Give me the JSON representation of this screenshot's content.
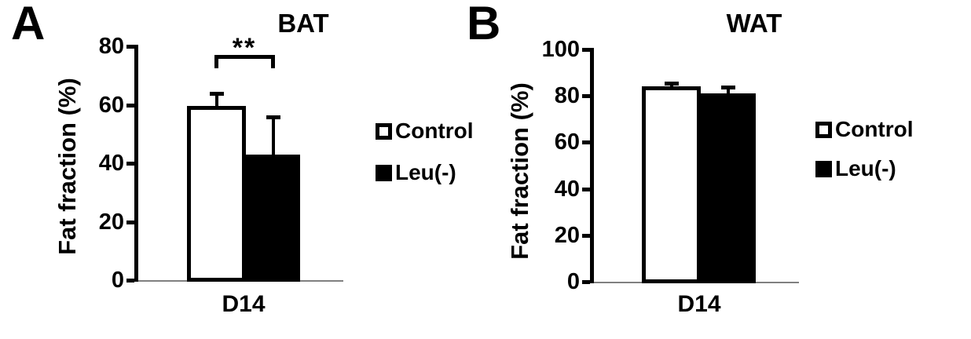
{
  "colors": {
    "background": "#ffffff",
    "axis": "#000000",
    "baseline": "#808080",
    "bar_fill_control": "#ffffff",
    "bar_fill_leu": "#000000",
    "bar_border": "#000000"
  },
  "chart_data": [
    {
      "type": "bar",
      "panel_label": "A",
      "title": "BAT",
      "ylabel": "Fat fraction (%)",
      "xlabel": "",
      "categories": [
        "D14"
      ],
      "series": [
        {
          "name": "Control",
          "value": 59.5,
          "error_plus": 5,
          "fill": "#ffffff"
        },
        {
          "name": "Leu(-)",
          "value": 43,
          "error_plus": 13.5,
          "fill": "#000000"
        }
      ],
      "ylim": [
        0,
        80
      ],
      "yticks": [
        0,
        20,
        40,
        60,
        80
      ],
      "grid": false,
      "legend_position": "right",
      "significance": {
        "label": "**",
        "between": [
          "Control",
          "Leu(-)"
        ]
      }
    },
    {
      "type": "bar",
      "panel_label": "B",
      "title": "WAT",
      "ylabel": "Fat fraction (%)",
      "xlabel": "",
      "categories": [
        "D14"
      ],
      "series": [
        {
          "name": "Control",
          "value": 84,
          "error_plus": 2,
          "fill": "#ffffff"
        },
        {
          "name": "Leu(-)",
          "value": 81,
          "error_plus": 3.5,
          "fill": "#000000"
        }
      ],
      "ylim": [
        0,
        100
      ],
      "yticks": [
        0,
        20,
        40,
        60,
        80,
        100
      ],
      "grid": false,
      "legend_position": "right",
      "significance": null
    }
  ]
}
